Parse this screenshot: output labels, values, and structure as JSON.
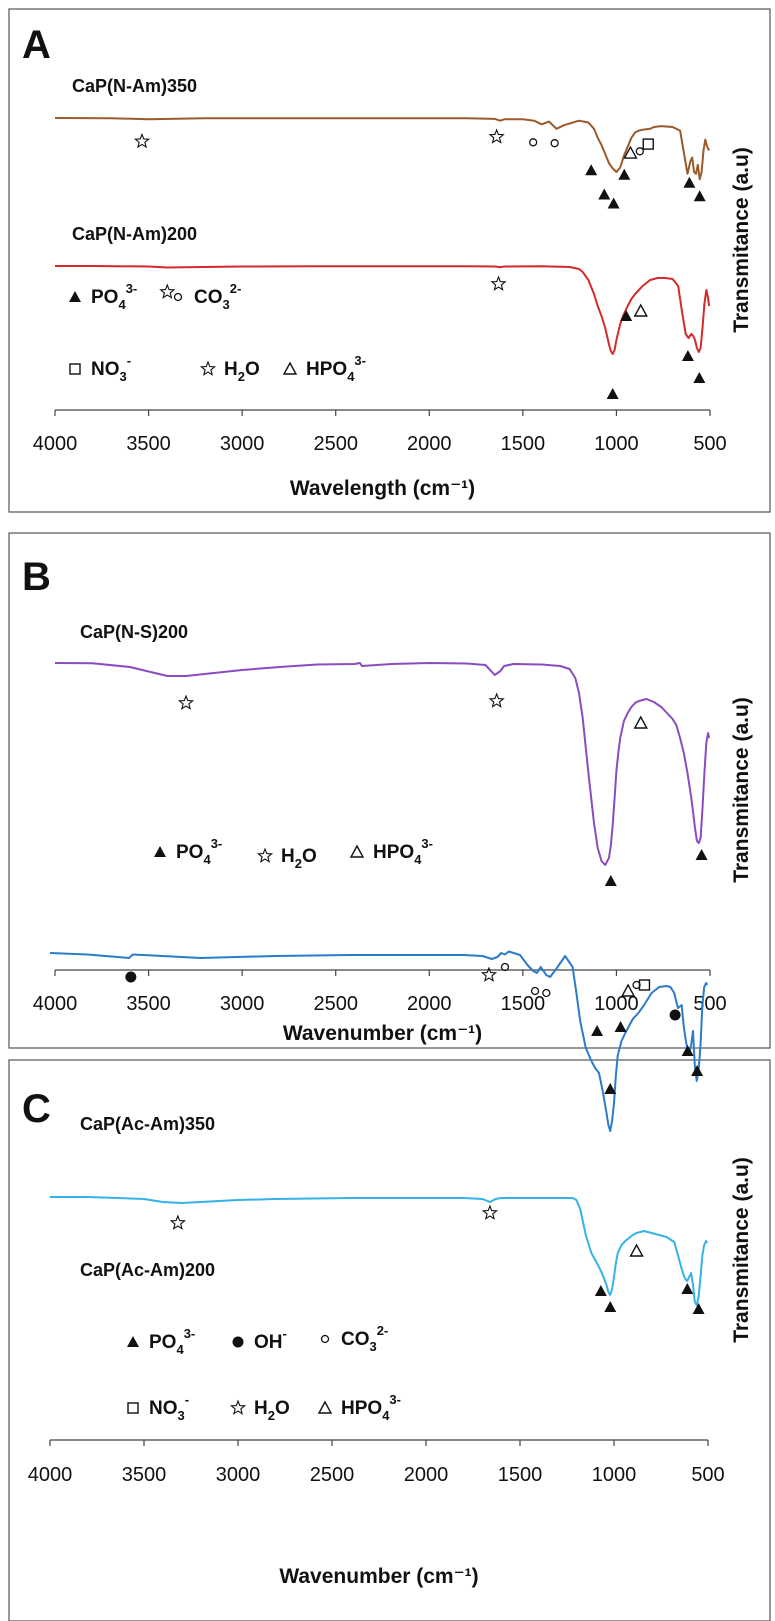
{
  "panels": [
    {
      "letter": "A",
      "xlabel": "Wavelength (cm⁻¹)",
      "ylabel": "Transmitance (a.u)"
    },
    {
      "letter": "B",
      "xlabel": "Wavenumber (cm⁻¹)",
      "ylabel": "Transmitance (a.u)"
    },
    {
      "letter": "C",
      "xlabel": "Wavenumber (cm⁻¹)",
      "ylabel": "Transmitance (a.u)"
    }
  ],
  "colors": {
    "CaP(N-Am)350": "#9b5a2a",
    "CaP(N-Am)200": "#d42a2a",
    "CaP(N-S)200": "#8a4cc0",
    "CaP(Ac-Am)350": "#2b7cc9",
    "CaP(Ac-Am)200": "#35b2e8",
    "frame": "#555555",
    "text": "#111111"
  },
  "chart_data": [
    {
      "type": "line",
      "panel": "A",
      "xlabel": "Wavelength (cm⁻¹)",
      "ylabel": "Transmitance (a.u)",
      "xlim": [
        4000,
        500
      ],
      "x_ticks": [
        4000,
        3500,
        3000,
        2500,
        2000,
        1500,
        1000,
        500
      ],
      "y_values_relative": true,
      "series": [
        {
          "name": "CaP(N-Am)350",
          "color": "#9b5a2a",
          "x": [
            4000,
            3700,
            3500,
            3200,
            2800,
            2400,
            2000,
            1800,
            1650,
            1620,
            1600,
            1500,
            1440,
            1400,
            1360,
            1320,
            1280,
            1200,
            1150,
            1120,
            1100,
            1080,
            1060,
            1040,
            1020,
            1000,
            980,
            960,
            940,
            920,
            900,
            880,
            860,
            820,
            800,
            760,
            700,
            660,
            640,
            620,
            605,
            595,
            585,
            575,
            565,
            555,
            545,
            535,
            525,
            515,
            505
          ],
          "y": [
            0,
            0.2,
            1.5,
            0.3,
            0.2,
            0.2,
            0.2,
            0.2,
            1.0,
            3.0,
            1.5,
            1.5,
            3,
            7,
            4,
            12,
            8,
            3,
            5,
            12,
            22,
            30,
            40,
            50,
            56,
            60,
            55,
            42,
            32,
            22,
            16,
            14,
            13,
            12,
            10,
            9,
            10,
            14,
            38,
            62,
            48,
            44,
            60,
            62,
            52,
            68,
            60,
            36,
            24,
            32,
            36
          ]
        },
        {
          "name": "CaP(N-Am)200",
          "color": "#d42a2a",
          "x": [
            4000,
            3800,
            3500,
            3400,
            3200,
            3000,
            2600,
            2200,
            1800,
            1650,
            1620,
            1600,
            1400,
            1250,
            1200,
            1180,
            1150,
            1120,
            1100,
            1080,
            1060,
            1040,
            1030,
            1020,
            1010,
            1000,
            980,
            960,
            940,
            920,
            900,
            880,
            860,
            820,
            780,
            740,
            700,
            670,
            650,
            630,
            615,
            600,
            590,
            580,
            570,
            560,
            550,
            540,
            530,
            520,
            510,
            505
          ],
          "y": [
            0,
            0,
            0.5,
            1.5,
            1,
            0.5,
            0.2,
            0.2,
            0.2,
            0.5,
            1.2,
            0.5,
            0.2,
            1.0,
            3,
            6,
            14,
            28,
            40,
            50,
            62,
            78,
            85,
            88,
            84,
            74,
            58,
            48,
            40,
            33,
            28,
            24,
            20,
            14,
            12,
            12,
            13,
            20,
            45,
            68,
            72,
            68,
            70,
            74,
            82,
            86,
            82,
            62,
            38,
            24,
            32,
            40
          ]
        },
        {
          "name": "CaP(N-S)200",
          "color": "#8a4cc0",
          "x": [
            4000,
            3800,
            3600,
            3400,
            3300,
            3200,
            3000,
            2800,
            2600,
            2400,
            2370,
            2360,
            2200,
            2000,
            1800,
            1700,
            1680,
            1650,
            1620,
            1600,
            1550,
            1400,
            1300,
            1250,
            1220,
            1200,
            1180,
            1150,
            1120,
            1100,
            1080,
            1060,
            1040,
            1030,
            1020,
            1010,
            1000,
            990,
            980,
            960,
            940,
            920,
            900,
            880,
            860,
            840,
            800,
            760,
            700,
            680,
            660,
            640,
            620,
            600,
            590,
            580,
            570,
            560,
            550,
            540,
            530,
            520,
            510,
            505
          ],
          "y": [
            0,
            0.3,
            4,
            13,
            13,
            11,
            7,
            4,
            1.5,
            1,
            0,
            3,
            1,
            0,
            0.5,
            2,
            6,
            12,
            8,
            3,
            1,
            1.5,
            3,
            6,
            15,
            30,
            55,
            110,
            160,
            185,
            198,
            202,
            195,
            183,
            162,
            135,
            108,
            90,
            75,
            58,
            50,
            44,
            40,
            38,
            37,
            36,
            39,
            44,
            56,
            62,
            75,
            90,
            110,
            135,
            150,
            165,
            178,
            180,
            175,
            145,
            110,
            80,
            70,
            75
          ]
        },
        {
          "name": "CaP(Ac-Am)350",
          "color": "#2b7cc9",
          "x": [
            4000,
            3800,
            3580,
            3560,
            3400,
            3200,
            2800,
            2400,
            2000,
            1800,
            1700,
            1650,
            1620,
            1600,
            1580,
            1560,
            1500,
            1460,
            1430,
            1410,
            1390,
            1360,
            1340,
            1300,
            1260,
            1220,
            1200,
            1180,
            1150,
            1120,
            1100,
            1080,
            1060,
            1040,
            1030,
            1020,
            1010,
            1000,
            990,
            980,
            960,
            940,
            920,
            900,
            870,
            840,
            800,
            760,
            720,
            700,
            680,
            660,
            640,
            630,
            620,
            610,
            600,
            590,
            580,
            570,
            560,
            550,
            540,
            530,
            520,
            510,
            505
          ],
          "y": [
            0,
            1.5,
            5,
            1.5,
            3,
            5,
            3,
            2,
            2,
            2,
            3,
            6,
            4,
            0,
            1.5,
            -1.5,
            2,
            12,
            18,
            20,
            14,
            22,
            24,
            14,
            3,
            14,
            40,
            68,
            95,
            108,
            115,
            120,
            138,
            160,
            172,
            178,
            168,
            150,
            122,
            102,
            88,
            80,
            73,
            66,
            60,
            52,
            40,
            34,
            33,
            34,
            40,
            55,
            52,
            72,
            85,
            96,
            100,
            92,
            78,
            112,
            128,
            118,
            92,
            52,
            34,
            30,
            32
          ]
        },
        {
          "name": "CaP(Ac-Am)200",
          "color": "#35b2e8",
          "x": [
            4000,
            3800,
            3500,
            3400,
            3300,
            3200,
            3000,
            2800,
            2400,
            2000,
            1800,
            1700,
            1660,
            1630,
            1600,
            1500,
            1400,
            1300,
            1220,
            1200,
            1180,
            1150,
            1120,
            1100,
            1080,
            1060,
            1040,
            1030,
            1020,
            1010,
            1000,
            990,
            980,
            960,
            940,
            920,
            900,
            880,
            860,
            840,
            800,
            760,
            720,
            680,
            660,
            640,
            630,
            620,
            610,
            600,
            590,
            580,
            570,
            560,
            550,
            540,
            530,
            520,
            510,
            505
          ],
          "y": [
            0,
            0,
            2,
            5,
            6,
            5,
            3,
            2,
            1,
            1,
            1,
            2,
            5,
            2,
            1,
            1,
            1,
            1,
            1,
            3,
            12,
            38,
            56,
            63,
            70,
            78,
            88,
            95,
            98,
            92,
            80,
            66,
            56,
            48,
            44,
            41,
            38,
            36,
            35,
            34,
            36,
            38,
            40,
            45,
            58,
            72,
            78,
            82,
            84,
            80,
            76,
            88,
            105,
            108,
            100,
            80,
            58,
            48,
            44,
            46
          ]
        }
      ]
    }
  ],
  "annotations": {
    "A": {
      "series_labels": [
        {
          "text": "CaP(N-Am)350",
          "series": 0
        },
        {
          "text": "CaP(N-Am)200",
          "series": 1
        }
      ],
      "markers": [
        {
          "sym": "star",
          "x": 3535,
          "y": 26,
          "s": 0
        },
        {
          "sym": "star",
          "x": 1640,
          "y": 21,
          "s": 0
        },
        {
          "sym": "circle",
          "x": 1445,
          "y": 27,
          "s": 0
        },
        {
          "sym": "circle",
          "x": 1330,
          "y": 28,
          "s": 0
        },
        {
          "sym": "tri",
          "x": 1135,
          "y": 58,
          "s": 0
        },
        {
          "sym": "tri",
          "x": 1065,
          "y": 85,
          "s": 0
        },
        {
          "sym": "tri",
          "x": 1015,
          "y": 95,
          "s": 0
        },
        {
          "sym": "tri",
          "x": 958,
          "y": 63,
          "s": 0
        },
        {
          "sym": "otri",
          "x": 925,
          "y": 39,
          "s": 0
        },
        {
          "sym": "circle",
          "x": 875,
          "y": 37,
          "s": 0
        },
        {
          "sym": "square",
          "x": 830,
          "y": 29,
          "s": 0
        },
        {
          "sym": "tri",
          "x": 610,
          "y": 72,
          "s": 0
        },
        {
          "sym": "tri",
          "x": 555,
          "y": 87,
          "s": 0
        },
        {
          "sym": "star",
          "x": 3400,
          "y": 26,
          "s": 1
        },
        {
          "sym": "star",
          "x": 1630,
          "y": 18,
          "s": 1
        },
        {
          "sym": "tri",
          "x": 1020,
          "y": 128,
          "s": 1
        },
        {
          "sym": "tri",
          "x": 948,
          "y": 50,
          "s": 1
        },
        {
          "sym": "otri",
          "x": 870,
          "y": 45,
          "s": 1
        },
        {
          "sym": "tri",
          "x": 618,
          "y": 90,
          "s": 1
        },
        {
          "sym": "tri",
          "x": 557,
          "y": 112,
          "s": 1
        }
      ],
      "legend": [
        {
          "sym": "tri",
          "base": "PO",
          "sub": "4",
          "sup": "3-"
        },
        {
          "sym": "circle",
          "base": "CO",
          "sub": "3",
          "sup": "2-"
        },
        {
          "sym": "square",
          "base": "NO",
          "sub": "3",
          "sup": "-"
        },
        {
          "sym": "star",
          "base": "H",
          "sub": "2",
          "tail": "O"
        },
        {
          "sym": "otri",
          "base": "HPO",
          "sub": "4",
          "sup": "3-"
        }
      ]
    },
    "B": {
      "series_labels": [
        {
          "text": "CaP(N-S)200",
          "series": 2
        }
      ],
      "markers": [
        {
          "sym": "star",
          "x": 3300,
          "y": 40,
          "s": 2
        },
        {
          "sym": "star",
          "x": 1640,
          "y": 38,
          "s": 2
        },
        {
          "sym": "otri",
          "x": 870,
          "y": 60,
          "s": 2
        },
        {
          "sym": "tri",
          "x": 1030,
          "y": 218,
          "s": 2
        },
        {
          "sym": "tri",
          "x": 545,
          "y": 192,
          "s": 2
        }
      ],
      "legend": [
        {
          "sym": "tri",
          "base": "PO",
          "sub": "4",
          "sup": "3-"
        },
        {
          "sym": "star",
          "base": "H",
          "sub": "2",
          "tail": "O"
        },
        {
          "sym": "otri",
          "base": "HPO",
          "sub": "4",
          "sup": "3-"
        }
      ]
    },
    "C": {
      "series_labels": [
        {
          "text": "CaP(Ac-Am)350",
          "series": 3
        },
        {
          "text": "CaP(Ac-Am)200",
          "series": 4
        }
      ],
      "markers": [
        {
          "sym": "dot",
          "x": 3570,
          "y": 24,
          "s": 3
        },
        {
          "sym": "star",
          "x": 1665,
          "y": 22,
          "s": 3
        },
        {
          "sym": "circle",
          "x": 1580,
          "y": 14,
          "s": 3
        },
        {
          "sym": "circle",
          "x": 1420,
          "y": 38,
          "s": 3
        },
        {
          "sym": "circle",
          "x": 1360,
          "y": 40,
          "s": 3
        },
        {
          "sym": "tri",
          "x": 1090,
          "y": 78,
          "s": 3
        },
        {
          "sym": "tri",
          "x": 1020,
          "y": 136,
          "s": 3
        },
        {
          "sym": "tri",
          "x": 965,
          "y": 74,
          "s": 3
        },
        {
          "sym": "otri",
          "x": 925,
          "y": 38,
          "s": 3
        },
        {
          "sym": "circle",
          "x": 880,
          "y": 32,
          "s": 3
        },
        {
          "sym": "square",
          "x": 838,
          "y": 32,
          "s": 3
        },
        {
          "sym": "dot",
          "x": 675,
          "y": 62,
          "s": 3
        },
        {
          "sym": "tri",
          "x": 608,
          "y": 98,
          "s": 3
        },
        {
          "sym": "tri",
          "x": 558,
          "y": 118,
          "s": 3
        },
        {
          "sym": "star",
          "x": 3320,
          "y": 26,
          "s": 4
        },
        {
          "sym": "star",
          "x": 1660,
          "y": 16,
          "s": 4
        },
        {
          "sym": "otri",
          "x": 880,
          "y": 54,
          "s": 4
        },
        {
          "sym": "tri",
          "x": 1070,
          "y": 94,
          "s": 4
        },
        {
          "sym": "tri",
          "x": 1020,
          "y": 110,
          "s": 4
        },
        {
          "sym": "tri",
          "x": 610,
          "y": 92,
          "s": 4
        },
        {
          "sym": "tri",
          "x": 550,
          "y": 112,
          "s": 4
        }
      ],
      "legend": [
        {
          "sym": "tri",
          "base": "PO",
          "sub": "4",
          "sup": "3-"
        },
        {
          "sym": "dot",
          "base": "OH",
          "sup": "-"
        },
        {
          "sym": "circle",
          "base": "CO",
          "sub": "3",
          "sup": "2-"
        },
        {
          "sym": "square",
          "base": "NO",
          "sub": "3",
          "sup": "-"
        },
        {
          "sym": "star",
          "base": "H",
          "sub": "2",
          "tail": "O"
        },
        {
          "sym": "otri",
          "base": "HPO",
          "sub": "4",
          "sup": "3-"
        }
      ]
    }
  }
}
